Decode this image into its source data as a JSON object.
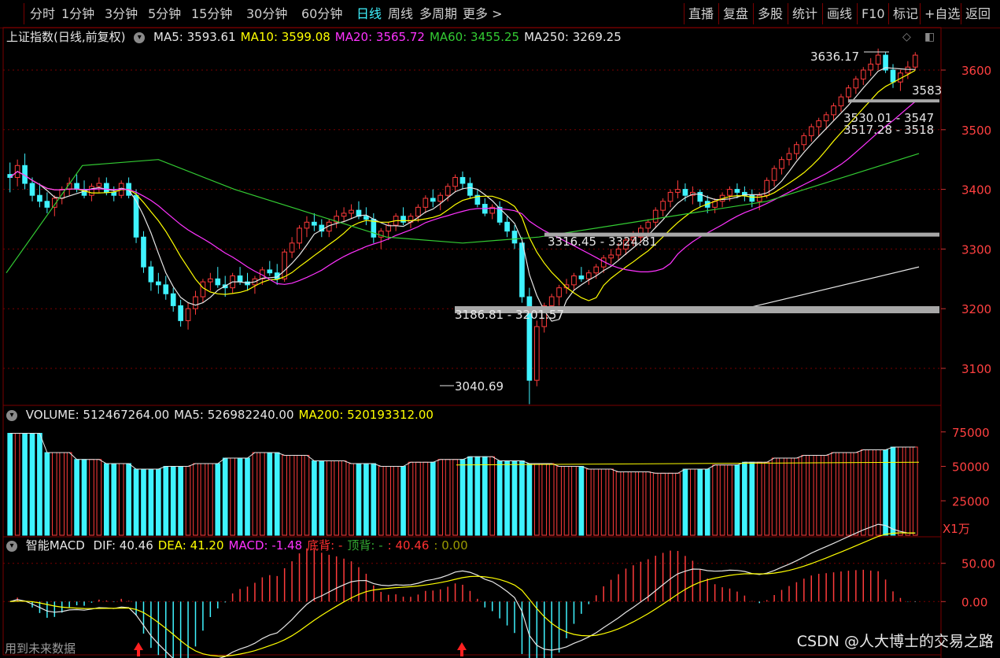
{
  "toolbar": {
    "periods": [
      "分时",
      "1分钟",
      "3分钟",
      "5分钟",
      "15分钟",
      "30分钟",
      "60分钟",
      "日线",
      "周线",
      "多周期",
      "更多 >"
    ],
    "active_period": "日线",
    "actions": [
      "直播",
      "复盘",
      "多股",
      "统计",
      "画线",
      "F10",
      "标记",
      "+自选",
      "返回"
    ]
  },
  "main_panel": {
    "title": "上证指数(日线,前复权)",
    "indicators": [
      {
        "label": "MA5: 3593.61",
        "color": "#e6e6e6"
      },
      {
        "label": "MA10: 3599.08",
        "color": "#ffff00"
      },
      {
        "label": "MA20: 3565.72",
        "color": "#ff33ff"
      },
      {
        "label": "MA60: 3455.25",
        "color": "#33cc33"
      },
      {
        "label": "MA250: 3269.25",
        "color": "#e6e6e6"
      }
    ],
    "y_ticks": [
      "3600",
      "3500",
      "3400",
      "3300",
      "3200",
      "3100"
    ],
    "annotations": {
      "high": "3636.17",
      "low": "3040.69",
      "right_price": "3583",
      "zones": [
        "3530.01 - 3547",
        "3517.28 - 3518",
        "3316.45 - 3324.81",
        "3186.81 - 3201.57"
      ]
    }
  },
  "volume_panel": {
    "indicators": [
      {
        "label": "VOLUME: 512467264.00",
        "color": "#e6e6e6"
      },
      {
        "label": "MA5: 526982240.00",
        "color": "#e6e6e6"
      },
      {
        "label": "MA200: 520193312.00",
        "color": "#ffff00"
      }
    ],
    "y_ticks": [
      "75000",
      "50000",
      "25000"
    ],
    "unit": "X1万"
  },
  "macd_panel": {
    "name": "智能MACD",
    "indicators": [
      {
        "label": "DIF: 40.46",
        "color": "#e6e6e6"
      },
      {
        "label": "DEA: 41.20",
        "color": "#ffff00"
      },
      {
        "label": "MACD: -1.48",
        "color": "#ff33ff"
      },
      {
        "label": "底背: -",
        "color": "#ff3030"
      },
      {
        "label": "顶背: -",
        "color": "#33aa33"
      },
      {
        "label": ": 40.46",
        "color": "#ff3030"
      },
      {
        "label": ": 0.00",
        "color": "#9a9a00"
      }
    ],
    "y_ticks": [
      "50.00",
      "0.00"
    ],
    "future_data_label": "用到未来数据"
  },
  "colors": {
    "up": "#ff3b3b",
    "down": "#3ff3ff",
    "grid": "#7a0000",
    "ma5": "#e6e6e6",
    "ma10": "#ffff00",
    "ma20": "#ff33ff",
    "ma60": "#33cc33",
    "ma250": "#e6e6e6"
  },
  "watermark": "CSDN @人大博士的交易之路",
  "chart_data": {
    "type": "candlestick",
    "y_range": [
      3040,
      3650
    ],
    "ohlc": [
      [
        3425,
        3445,
        3395,
        3420
      ],
      [
        3420,
        3450,
        3405,
        3440
      ],
      [
        3440,
        3460,
        3400,
        3410
      ],
      [
        3410,
        3420,
        3380,
        3390
      ],
      [
        3390,
        3410,
        3370,
        3380
      ],
      [
        3380,
        3395,
        3360,
        3370
      ],
      [
        3370,
        3390,
        3355,
        3385
      ],
      [
        3385,
        3405,
        3375,
        3400
      ],
      [
        3400,
        3420,
        3390,
        3410
      ],
      [
        3410,
        3425,
        3395,
        3400
      ],
      [
        3400,
        3415,
        3385,
        3390
      ],
      [
        3390,
        3410,
        3380,
        3405
      ],
      [
        3405,
        3420,
        3395,
        3410
      ],
      [
        3410,
        3420,
        3390,
        3395
      ],
      [
        3395,
        3405,
        3380,
        3390
      ],
      [
        3390,
        3415,
        3385,
        3410
      ],
      [
        3410,
        3420,
        3385,
        3390
      ],
      [
        3390,
        3400,
        3310,
        3320
      ],
      [
        3320,
        3330,
        3260,
        3270
      ],
      [
        3270,
        3280,
        3230,
        3245
      ],
      [
        3245,
        3260,
        3225,
        3240
      ],
      [
        3240,
        3255,
        3215,
        3225
      ],
      [
        3225,
        3235,
        3195,
        3205
      ],
      [
        3205,
        3215,
        3170,
        3180
      ],
      [
        3180,
        3210,
        3165,
        3200
      ],
      [
        3200,
        3230,
        3190,
        3220
      ],
      [
        3220,
        3250,
        3210,
        3245
      ],
      [
        3245,
        3260,
        3230,
        3250
      ],
      [
        3250,
        3270,
        3235,
        3240
      ],
      [
        3240,
        3255,
        3220,
        3235
      ],
      [
        3235,
        3260,
        3225,
        3255
      ],
      [
        3255,
        3270,
        3240,
        3245
      ],
      [
        3245,
        3260,
        3230,
        3240
      ],
      [
        3240,
        3255,
        3225,
        3250
      ],
      [
        3250,
        3270,
        3240,
        3265
      ],
      [
        3265,
        3280,
        3255,
        3260
      ],
      [
        3260,
        3275,
        3240,
        3250
      ],
      [
        3250,
        3300,
        3245,
        3295
      ],
      [
        3295,
        3320,
        3285,
        3310
      ],
      [
        3310,
        3340,
        3300,
        3335
      ],
      [
        3335,
        3355,
        3320,
        3345
      ],
      [
        3345,
        3360,
        3330,
        3340
      ],
      [
        3340,
        3350,
        3320,
        3330
      ],
      [
        3330,
        3350,
        3320,
        3345
      ],
      [
        3345,
        3365,
        3335,
        3355
      ],
      [
        3355,
        3370,
        3345,
        3360
      ],
      [
        3360,
        3375,
        3350,
        3365
      ],
      [
        3365,
        3380,
        3350,
        3355
      ],
      [
        3355,
        3370,
        3340,
        3350
      ],
      [
        3350,
        3360,
        3310,
        3320
      ],
      [
        3320,
        3335,
        3300,
        3330
      ],
      [
        3330,
        3345,
        3315,
        3340
      ],
      [
        3340,
        3360,
        3330,
        3355
      ],
      [
        3355,
        3370,
        3340,
        3345
      ],
      [
        3345,
        3360,
        3335,
        3355
      ],
      [
        3355,
        3375,
        3345,
        3370
      ],
      [
        3370,
        3390,
        3360,
        3385
      ],
      [
        3385,
        3400,
        3370,
        3380
      ],
      [
        3380,
        3395,
        3365,
        3390
      ],
      [
        3390,
        3410,
        3380,
        3405
      ],
      [
        3405,
        3425,
        3395,
        3420
      ],
      [
        3420,
        3430,
        3400,
        3410
      ],
      [
        3410,
        3420,
        3385,
        3390
      ],
      [
        3390,
        3400,
        3370,
        3375
      ],
      [
        3375,
        3385,
        3355,
        3360
      ],
      [
        3360,
        3375,
        3350,
        3370
      ],
      [
        3370,
        3380,
        3340,
        3345
      ],
      [
        3345,
        3355,
        3320,
        3330
      ],
      [
        3330,
        3340,
        3300,
        3310
      ],
      [
        3310,
        3320,
        3210,
        3220
      ],
      [
        3220,
        3235,
        3040,
        3080
      ],
      [
        3080,
        3180,
        3070,
        3170
      ],
      [
        3170,
        3210,
        3160,
        3205
      ],
      [
        3205,
        3225,
        3195,
        3220
      ],
      [
        3220,
        3240,
        3205,
        3235
      ],
      [
        3235,
        3250,
        3225,
        3240
      ],
      [
        3240,
        3260,
        3230,
        3255
      ],
      [
        3255,
        3270,
        3245,
        3250
      ],
      [
        3250,
        3265,
        3240,
        3260
      ],
      [
        3260,
        3275,
        3250,
        3270
      ],
      [
        3270,
        3290,
        3260,
        3285
      ],
      [
        3285,
        3300,
        3275,
        3290
      ],
      [
        3290,
        3310,
        3280,
        3300
      ],
      [
        3300,
        3320,
        3290,
        3315
      ],
      [
        3315,
        3330,
        3305,
        3320
      ],
      [
        3320,
        3340,
        3310,
        3335
      ],
      [
        3335,
        3350,
        3320,
        3345
      ],
      [
        3345,
        3370,
        3335,
        3365
      ],
      [
        3365,
        3385,
        3355,
        3380
      ],
      [
        3380,
        3400,
        3370,
        3395
      ],
      [
        3395,
        3415,
        3385,
        3400
      ],
      [
        3400,
        3410,
        3380,
        3390
      ],
      [
        3390,
        3405,
        3375,
        3395
      ],
      [
        3395,
        3400,
        3370,
        3380
      ],
      [
        3380,
        3390,
        3360,
        3370
      ],
      [
        3370,
        3385,
        3360,
        3380
      ],
      [
        3380,
        3395,
        3370,
        3390
      ],
      [
        3390,
        3405,
        3380,
        3400
      ],
      [
        3400,
        3410,
        3385,
        3395
      ],
      [
        3395,
        3405,
        3380,
        3390
      ],
      [
        3390,
        3400,
        3370,
        3380
      ],
      [
        3380,
        3395,
        3365,
        3390
      ],
      [
        3390,
        3420,
        3385,
        3415
      ],
      [
        3415,
        3440,
        3405,
        3435
      ],
      [
        3435,
        3455,
        3425,
        3450
      ],
      [
        3450,
        3470,
        3440,
        3460
      ],
      [
        3460,
        3480,
        3450,
        3475
      ],
      [
        3475,
        3495,
        3465,
        3490
      ],
      [
        3490,
        3510,
        3480,
        3505
      ],
      [
        3505,
        3520,
        3490,
        3515
      ],
      [
        3515,
        3530,
        3500,
        3525
      ],
      [
        3525,
        3545,
        3515,
        3540
      ],
      [
        3540,
        3560,
        3530,
        3555
      ],
      [
        3555,
        3575,
        3545,
        3570
      ],
      [
        3570,
        3590,
        3560,
        3585
      ],
      [
        3585,
        3605,
        3575,
        3600
      ],
      [
        3600,
        3620,
        3590,
        3610
      ],
      [
        3610,
        3636,
        3600,
        3625
      ],
      [
        3625,
        3630,
        3595,
        3600
      ],
      [
        3600,
        3610,
        3570,
        3580
      ],
      [
        3580,
        3600,
        3565,
        3595
      ],
      [
        3595,
        3615,
        3585,
        3605
      ],
      [
        3605,
        3630,
        3600,
        3625
      ]
    ],
    "ma60_approx": [
      3260,
      3440,
      3450,
      3400,
      3360,
      3320,
      3310,
      3320,
      3340,
      3360,
      3380,
      3420,
      3460
    ],
    "ma250_approx_start": 3200,
    "ma250_approx_end": 3270,
    "volume_approx": [
      74000,
      60000,
      55000,
      52000,
      48000,
      50000,
      52000,
      56000,
      60000,
      58000,
      54000,
      52000,
      50000,
      53000,
      55000,
      57000,
      54000,
      52000,
      50000,
      48000,
      46000,
      45000,
      48000,
      51000,
      53000,
      56000,
      58000,
      60000,
      62000,
      64000
    ],
    "macd_ticks": [
      50,
      0
    ]
  }
}
